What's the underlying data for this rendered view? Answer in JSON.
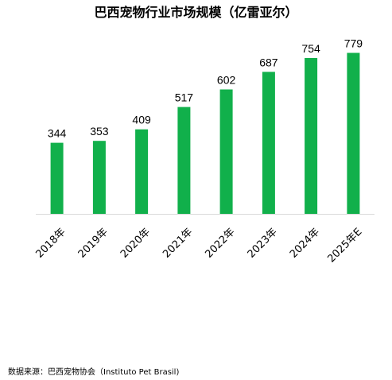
{
  "chart_data": {
    "type": "bar",
    "title": "巴西宠物行业市场规模（亿雷亚尔）",
    "categories": [
      "2018年",
      "2019年",
      "2020年",
      "2021年",
      "2022年",
      "2023年",
      "2024年",
      "2025年E"
    ],
    "values": [
      344,
      353,
      409,
      517,
      602,
      687,
      754,
      779
    ],
    "xlabel": "",
    "ylabel": "",
    "ylim": [
      0,
      800
    ],
    "grid": false,
    "legend": "none",
    "bar_color": "#11b04b",
    "axis_color": "#d9d9d9",
    "data_labels": true
  },
  "source": "数据来源：巴西宠物协会（Instituto Pet Brasil)"
}
